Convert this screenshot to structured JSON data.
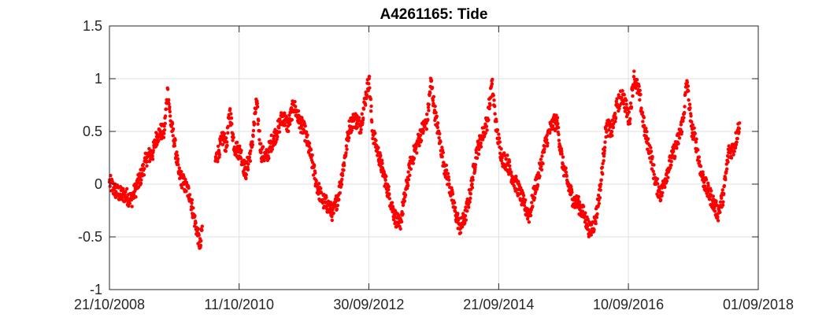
{
  "chart_data": {
    "type": "scatter",
    "title": "A4261165: Tide",
    "xlabel": "",
    "ylabel": "",
    "x_axis": {
      "type": "date",
      "range": [
        "2008-10-21",
        "2018-09-01"
      ],
      "ticks": [
        {
          "date": "2008-10-21",
          "label": "21/10/2008"
        },
        {
          "date": "2010-10-11",
          "label": "11/10/2010"
        },
        {
          "date": "2012-09-30",
          "label": "30/09/2012"
        },
        {
          "date": "2014-09-21",
          "label": "21/09/2014"
        },
        {
          "date": "2016-09-10",
          "label": "10/09/2016"
        },
        {
          "date": "2018-09-01",
          "label": "01/09/2018"
        }
      ]
    },
    "y_axis": {
      "range": [
        -1,
        1.5
      ],
      "ticks": [
        {
          "value": 1.5,
          "label": "1.5"
        },
        {
          "value": 1,
          "label": "1"
        },
        {
          "value": 0.5,
          "label": "0.5"
        },
        {
          "value": 0,
          "label": "0"
        },
        {
          "value": -0.5,
          "label": "-0.5"
        },
        {
          "value": -1,
          "label": "-1"
        }
      ]
    },
    "grid": true,
    "legend": "none",
    "marker_color": "#ff0000",
    "series": [
      {
        "points": [
          [
            "2008-10-21",
            0.02
          ],
          [
            "2008-11-15",
            -0.05
          ],
          [
            "2008-12-20",
            -0.1
          ],
          [
            "2009-01-15",
            -0.1
          ],
          [
            "2009-02-20",
            -0.15
          ],
          [
            "2009-03-15",
            -0.05
          ],
          [
            "2009-04-20",
            0.1
          ],
          [
            "2009-05-15",
            0.25
          ],
          [
            "2009-06-20",
            0.3
          ],
          [
            "2009-07-10",
            0.45
          ],
          [
            "2009-08-01",
            0.5
          ],
          [
            "2009-08-20",
            0.48
          ],
          [
            "2009-09-10",
            0.9
          ],
          [
            "2009-09-25",
            0.6
          ],
          [
            "2009-10-15",
            0.42
          ],
          [
            "2009-11-10",
            0.1
          ],
          [
            "2009-12-10",
            0.0
          ],
          [
            "2010-01-10",
            -0.1
          ],
          [
            "2010-02-01",
            -0.3
          ],
          [
            "2010-02-20",
            -0.45
          ],
          [
            "2010-03-10",
            -0.6
          ],
          [
            "2010-03-20",
            -0.4
          ],
          [
            "2010-06-01",
            0.22
          ],
          [
            "2010-06-20",
            0.32
          ],
          [
            "2010-07-15",
            0.45
          ],
          [
            "2010-08-01",
            0.35
          ],
          [
            "2010-08-20",
            0.7
          ],
          [
            "2010-09-15",
            0.35
          ],
          [
            "2010-10-20",
            0.3
          ],
          [
            "2010-11-15",
            0.1
          ],
          [
            "2010-12-20",
            0.35
          ],
          [
            "2011-01-15",
            0.78
          ],
          [
            "2011-02-10",
            0.3
          ],
          [
            "2011-03-10",
            0.25
          ],
          [
            "2011-04-10",
            0.4
          ],
          [
            "2011-05-10",
            0.5
          ],
          [
            "2011-06-10",
            0.65
          ],
          [
            "2011-07-10",
            0.55
          ],
          [
            "2011-08-10",
            0.75
          ],
          [
            "2011-09-10",
            0.6
          ],
          [
            "2011-10-10",
            0.5
          ],
          [
            "2011-11-15",
            0.25
          ],
          [
            "2011-12-15",
            0.0
          ],
          [
            "2012-01-15",
            -0.15
          ],
          [
            "2012-02-15",
            -0.2
          ],
          [
            "2012-03-15",
            -0.28
          ],
          [
            "2012-04-15",
            -0.1
          ],
          [
            "2012-05-15",
            0.2
          ],
          [
            "2012-06-15",
            0.55
          ],
          [
            "2012-07-15",
            0.62
          ],
          [
            "2012-08-15",
            0.55
          ],
          [
            "2012-09-15",
            0.85
          ],
          [
            "2012-10-01",
            1.0
          ],
          [
            "2012-10-20",
            0.5
          ],
          [
            "2012-11-20",
            0.3
          ],
          [
            "2012-12-20",
            0.1
          ],
          [
            "2013-01-20",
            -0.1
          ],
          [
            "2013-02-20",
            -0.3
          ],
          [
            "2013-03-20",
            -0.4
          ],
          [
            "2013-04-20",
            -0.1
          ],
          [
            "2013-05-20",
            0.2
          ],
          [
            "2013-06-20",
            0.35
          ],
          [
            "2013-07-20",
            0.5
          ],
          [
            "2013-08-20",
            0.6
          ],
          [
            "2013-09-10",
            0.98
          ],
          [
            "2013-09-30",
            0.7
          ],
          [
            "2013-10-20",
            0.5
          ],
          [
            "2013-11-20",
            0.2
          ],
          [
            "2013-12-20",
            0.0
          ],
          [
            "2014-01-20",
            -0.25
          ],
          [
            "2014-02-20",
            -0.42
          ],
          [
            "2014-03-20",
            -0.3
          ],
          [
            "2014-04-20",
            -0.05
          ],
          [
            "2014-05-20",
            0.3
          ],
          [
            "2014-06-20",
            0.45
          ],
          [
            "2014-07-20",
            0.6
          ],
          [
            "2014-08-15",
            0.95
          ],
          [
            "2014-09-10",
            0.5
          ],
          [
            "2014-10-10",
            0.25
          ],
          [
            "2014-11-10",
            0.2
          ],
          [
            "2014-12-10",
            0.05
          ],
          [
            "2015-01-10",
            -0.05
          ],
          [
            "2015-02-10",
            -0.2
          ],
          [
            "2015-03-10",
            -0.3
          ],
          [
            "2015-04-10",
            -0.05
          ],
          [
            "2015-05-10",
            0.15
          ],
          [
            "2015-06-10",
            0.4
          ],
          [
            "2015-07-10",
            0.55
          ],
          [
            "2015-08-10",
            0.6
          ],
          [
            "2015-09-10",
            0.2
          ],
          [
            "2015-10-10",
            0.0
          ],
          [
            "2015-11-10",
            -0.15
          ],
          [
            "2015-12-10",
            -0.2
          ],
          [
            "2016-01-10",
            -0.3
          ],
          [
            "2016-02-10",
            -0.45
          ],
          [
            "2016-03-10",
            -0.35
          ],
          [
            "2016-04-10",
            0.0
          ],
          [
            "2016-05-10",
            0.55
          ],
          [
            "2016-06-10",
            0.5
          ],
          [
            "2016-07-10",
            0.75
          ],
          [
            "2016-08-10",
            0.85
          ],
          [
            "2016-09-15",
            0.6
          ],
          [
            "2016-10-10",
            1.02
          ],
          [
            "2016-11-10",
            0.85
          ],
          [
            "2016-12-10",
            0.5
          ],
          [
            "2017-01-10",
            0.3
          ],
          [
            "2017-02-10",
            0.0
          ],
          [
            "2017-03-10",
            -0.1
          ],
          [
            "2017-04-10",
            0.1
          ],
          [
            "2017-05-10",
            0.25
          ],
          [
            "2017-06-10",
            0.4
          ],
          [
            "2017-07-10",
            0.6
          ],
          [
            "2017-08-01",
            0.98
          ],
          [
            "2017-08-25",
            0.55
          ],
          [
            "2017-09-20",
            0.4
          ],
          [
            "2017-10-20",
            0.1
          ],
          [
            "2017-11-20",
            -0.05
          ],
          [
            "2017-12-20",
            -0.15
          ],
          [
            "2018-01-20",
            -0.28
          ],
          [
            "2018-02-20",
            -0.1
          ],
          [
            "2018-03-20",
            0.3
          ],
          [
            "2018-04-20",
            0.35
          ],
          [
            "2018-05-20",
            0.58
          ]
        ]
      }
    ]
  }
}
